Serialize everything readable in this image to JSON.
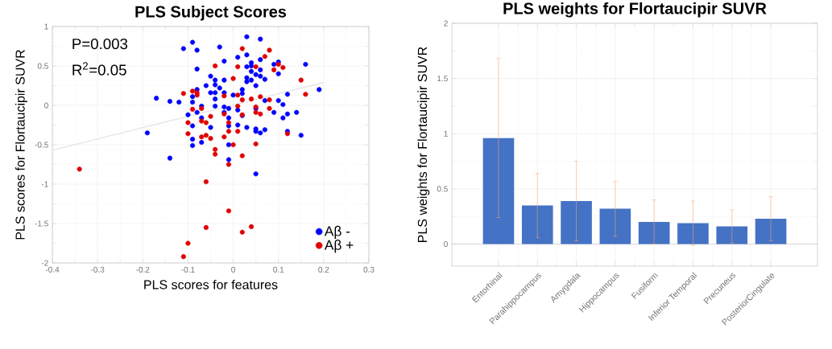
{
  "chart_data": [
    {
      "type": "scatter",
      "title": "PLS Subject Scores",
      "xlabel": "PLS scores for features",
      "ylabel": "PLS scores for Flortaucipir SUVR",
      "annotations": [
        "P=0.003",
        "R$^{2}$=0.05"
      ],
      "xlim": [
        -0.4,
        0.3
      ],
      "ylim": [
        -2,
        1
      ],
      "xticks": [
        -0.4,
        -0.3,
        -0.2,
        -0.1,
        0,
        0.1,
        0.2,
        0.3
      ],
      "yticks": [
        -2,
        -1.5,
        -1,
        -0.5,
        0,
        0.5,
        1
      ],
      "grid": true,
      "legend": "bottom right",
      "series": [
        {
          "type": "line",
          "color": "#dddddd",
          "x": [
            -0.4,
            0.2
          ],
          "values": [
            -0.57,
            0.29
          ]
        },
        {
          "name": "Aβ -",
          "marker": "circle",
          "color": "#0000ff",
          "x": [
            0.03,
            0.06,
            -0.09,
            -0.11,
            -0.08,
            -0.03,
            -0.08,
            -0.02,
            0.01,
            0.03,
            0.09,
            0.1,
            0.1,
            0.16,
            0.19,
            0.12,
            0.06,
            0.04,
            0.03,
            0.04,
            0.06,
            0.04,
            0.05,
            0.06,
            0.07,
            0.03,
            0.03,
            0.04,
            0.05,
            0.02,
            -0.05,
            -0.04,
            -0.04,
            -0.03,
            -0.02,
            -0.02,
            -0.04,
            -0.05,
            -0.04,
            0.0,
            0.02,
            -0.06,
            -0.08,
            -0.09,
            -0.17,
            -0.14,
            -0.12,
            -0.09,
            -0.07,
            -0.08,
            -0.1,
            -0.07,
            -0.04,
            -0.02,
            -0.01,
            0.01,
            0.02,
            -0.01,
            -0.02,
            -0.01,
            0.01,
            0.03,
            0.05,
            0.07,
            0.1,
            0.11,
            0.11,
            0.12,
            0.14,
            0.09,
            0.05,
            0.05,
            0.06,
            0.07,
            0.12,
            0.15,
            -0.19,
            -0.09,
            -0.09,
            -0.09,
            -0.07,
            -0.05,
            -0.01,
            -0.14,
            -0.01,
            0.05
          ],
          "values": [
            0.87,
            0.84,
            0.8,
            0.72,
            0.7,
            0.74,
            0.46,
            0.56,
            0.61,
            0.64,
            0.52,
            0.55,
            0.4,
            0.52,
            0.2,
            0.14,
            0.58,
            0.54,
            0.49,
            0.5,
            0.45,
            0.43,
            0.39,
            0.37,
            0.33,
            0.35,
            0.3,
            0.32,
            0.25,
            0.2,
            0.37,
            0.32,
            0.26,
            0.22,
            0.32,
            0.16,
            0.16,
            0.16,
            0.08,
            0.13,
            0.15,
            0.25,
            0.2,
            0.11,
            0.09,
            0.05,
            0.04,
            0.04,
            -0.01,
            -0.09,
            -0.12,
            -0.16,
            -0.01,
            -0.02,
            -0.04,
            -0.06,
            -0.13,
            -0.16,
            -0.09,
            -0.26,
            -0.25,
            -0.28,
            -0.04,
            0.06,
            0.06,
            0.01,
            -0.16,
            -0.11,
            -0.09,
            -0.09,
            -0.3,
            -0.33,
            -0.35,
            -0.31,
            -0.33,
            -0.38,
            -0.35,
            -0.26,
            -0.43,
            -0.51,
            -0.47,
            -0.28,
            -0.5,
            -0.67,
            -0.69,
            -0.87
          ]
        },
        {
          "name": "Aβ +",
          "marker": "circle",
          "color": "#e00000",
          "x": [
            0.02,
            0.08,
            0.07,
            -0.04,
            0.01,
            0.05,
            0.09,
            0.1,
            0.11,
            0.15,
            0.16,
            0.0,
            -0.11,
            -0.09,
            -0.08,
            -0.08,
            -0.02,
            0.01,
            0.04,
            0.06,
            0.08,
            0.02,
            0.01,
            0.05,
            0.05,
            0.08,
            0.06,
            -0.09,
            -0.07,
            -0.1,
            -0.07,
            -0.06,
            -0.05,
            -0.02,
            -0.01,
            0.02,
            -0.1,
            -0.07,
            -0.06,
            -0.05,
            -0.02,
            -0.01,
            0.01,
            0.12,
            0.05,
            0.0,
            -0.04,
            -0.04,
            0.02,
            -0.34,
            -0.06,
            -0.01,
            -0.01,
            -0.06,
            0.02,
            0.04,
            -0.1,
            -0.11
          ],
          "values": [
            0.72,
            0.7,
            0.62,
            0.5,
            0.49,
            0.49,
            0.45,
            0.52,
            0.48,
            0.32,
            0.14,
            0.34,
            0.15,
            0.18,
            0.16,
            0.13,
            0.12,
            0.13,
            0.08,
            0.11,
            0.07,
            0.07,
            -0.01,
            -0.02,
            -0.09,
            -0.04,
            -0.11,
            -0.05,
            -0.04,
            -0.22,
            -0.2,
            -0.22,
            -0.14,
            -0.11,
            -0.22,
            -0.12,
            -0.36,
            -0.4,
            -0.38,
            -0.42,
            -0.4,
            -0.33,
            -0.33,
            -0.36,
            -0.49,
            -0.5,
            -0.56,
            -0.62,
            -0.64,
            -0.81,
            -0.97,
            -0.75,
            -1.34,
            -1.55,
            -1.61,
            -1.54,
            -1.75,
            -1.92
          ]
        }
      ]
    },
    {
      "type": "bar",
      "title": "PLS weights for Flortaucipir SUVR",
      "ylabel": "PLS weights for Flortaucipir SUVR",
      "categories": [
        "Entorhinal",
        "Parahippocampus",
        "Amygdala",
        "Hippocampus",
        "Fusiform",
        "Inferior Temporal",
        "Precuneus",
        "PosteriorCingulate"
      ],
      "values": [
        0.96,
        0.35,
        0.39,
        0.32,
        0.2,
        0.19,
        0.16,
        0.23
      ],
      "errors": [
        0.72,
        0.29,
        0.36,
        0.25,
        0.2,
        0.2,
        0.15,
        0.2
      ],
      "color": "#4472c4",
      "ylim": [
        -0.2,
        2
      ],
      "yticks": [
        0,
        0.5,
        1,
        1.5,
        2
      ],
      "grid": true,
      "ref_lines": [
        {
          "axis": "y",
          "value": 0,
          "color": "#bbbbbb"
        }
      ]
    }
  ]
}
